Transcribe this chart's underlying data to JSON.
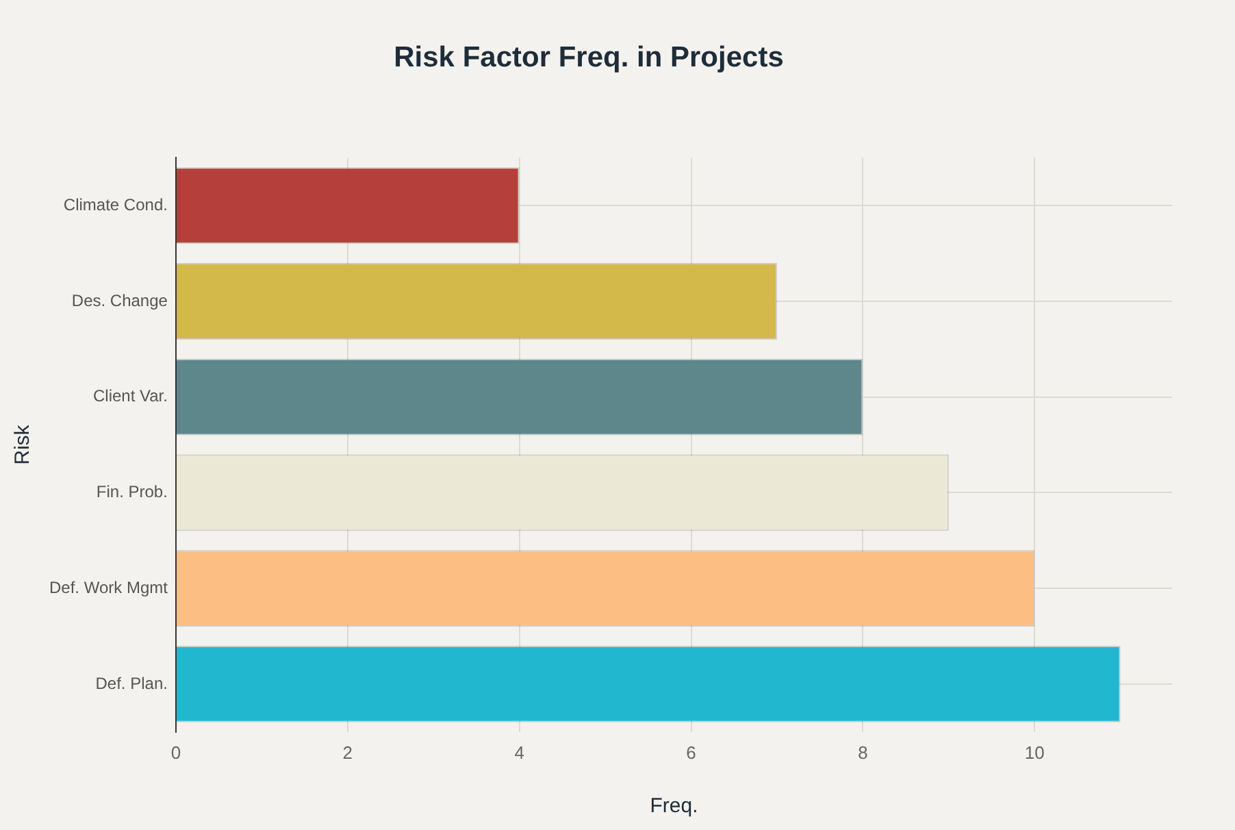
{
  "chart_data": {
    "type": "bar",
    "orientation": "horizontal",
    "title": "Risk Factor Freq. in Projects",
    "xlabel": "Freq.",
    "ylabel": "Risk",
    "categories": [
      "Climate Cond.",
      "Des. Change",
      "Client Var.",
      "Fin. Prob.",
      "Def. Work Mgmt",
      "Def. Plan."
    ],
    "values": [
      4,
      7,
      8,
      9,
      10,
      11
    ],
    "colors": [
      "#b5403b",
      "#d2b94a",
      "#5e878c",
      "#ebe8d6",
      "#fdbe84",
      "#21b8cf"
    ],
    "xlim": [
      0,
      11.6
    ],
    "xticks": [
      0,
      2,
      4,
      6,
      8,
      10
    ],
    "grid": true,
    "legend": false
  }
}
